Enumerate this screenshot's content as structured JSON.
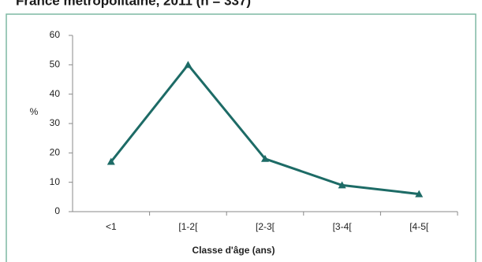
{
  "chart_data": {
    "type": "line",
    "title": "France métropolitaine, 2011 (n = 337)",
    "categories": [
      "<1",
      "[1-2[",
      "[2-3[",
      "[3-4[",
      "[4-5["
    ],
    "series": [
      {
        "name": "%",
        "color": "#1d6b66",
        "values": [
          17,
          50,
          18,
          9,
          6
        ]
      }
    ],
    "x_label": "Classe d'âge (ans)",
    "y_label": "%",
    "ylim": [
      0,
      60
    ],
    "yticks": [
      0,
      10,
      20,
      30,
      40,
      50,
      60
    ],
    "grid": false
  }
}
